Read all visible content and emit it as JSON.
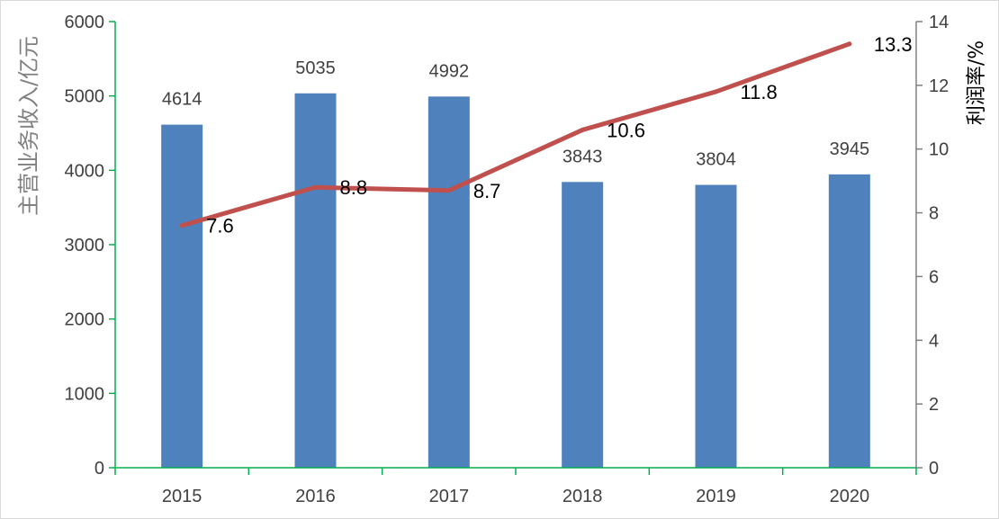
{
  "chart_data": {
    "type": "bar+line",
    "categories": [
      "2015",
      "2016",
      "2017",
      "2018",
      "2019",
      "2020"
    ],
    "series": [
      {
        "name": "主营业务收入",
        "type": "bar",
        "axis": "left",
        "values": [
          4614,
          5035,
          4992,
          3843,
          3804,
          3945
        ],
        "labels": [
          "4614",
          "5035",
          "4992",
          "3843",
          "3804",
          "3945"
        ],
        "color": "#4F81BD"
      },
      {
        "name": "利润率",
        "type": "line",
        "axis": "right",
        "values": [
          7.6,
          8.8,
          8.7,
          10.6,
          11.8,
          13.3
        ],
        "labels": [
          "7.6",
          "8.8",
          "8.7",
          "10.6",
          "11.8",
          "13.3"
        ],
        "color": "#C0504D"
      }
    ],
    "ylabel": "主营业务收入/亿元",
    "y2label": "利润率/%",
    "ylim": [
      0,
      6000
    ],
    "y2lim": [
      0,
      14
    ],
    "yticks": [
      "0",
      "1000",
      "2000",
      "3000",
      "4000",
      "5000",
      "6000"
    ],
    "y2ticks": [
      "0",
      "2",
      "4",
      "6",
      "8",
      "10",
      "12",
      "14"
    ],
    "left_axis_color": "#00B050",
    "bottom_axis_color": "#00B050",
    "right_axis_color": "#808080",
    "grid": false,
    "legend": "none"
  }
}
